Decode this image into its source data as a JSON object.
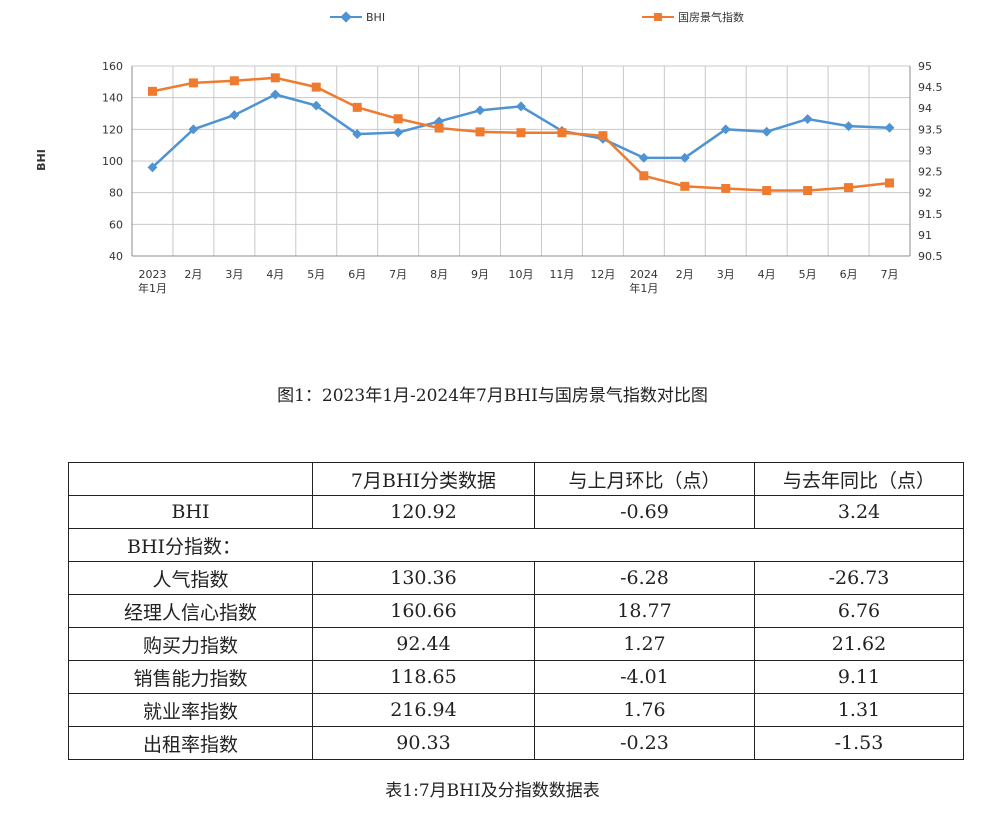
{
  "chart_data": {
    "type": "line",
    "categories": [
      "2023\n年1月",
      "2月",
      "3月",
      "4月",
      "5月",
      "6月",
      "7月",
      "8月",
      "9月",
      "10月",
      "11月",
      "12月",
      "2024\n年1月",
      "2月",
      "3月",
      "4月",
      "5月",
      "6月",
      "7月"
    ],
    "ylabel": "BHI",
    "ylim": [
      40,
      160
    ],
    "yticks": [
      40,
      60,
      80,
      100,
      120,
      140,
      160
    ],
    "y2lim": [
      90.5,
      95
    ],
    "y2ticks": [
      "90.5",
      "91",
      "91.5",
      "92",
      "92.5",
      "93",
      "93.5",
      "94",
      "94.5",
      "95"
    ],
    "grid": true,
    "legend_position": "top",
    "series": [
      {
        "name": "BHI",
        "axis": "left",
        "color": "#4f93d2",
        "marker": "diamond",
        "values": [
          96,
          120,
          129,
          142,
          135,
          117,
          118,
          125,
          132,
          134.5,
          119,
          114,
          102,
          102,
          120,
          118.5,
          126.5,
          122,
          121
        ]
      },
      {
        "name": "国房景气指数",
        "axis": "right",
        "color": "#ee7b30",
        "marker": "square",
        "values": [
          94.4,
          94.6,
          94.65,
          94.72,
          94.5,
          94.02,
          93.75,
          93.53,
          93.44,
          93.42,
          93.42,
          93.35,
          92.4,
          92.15,
          92.1,
          92.05,
          92.05,
          92.12,
          92.23
        ]
      }
    ]
  },
  "figure_caption": "图1：2023年1月-2024年7月BHI与国房景气指数对比图",
  "table": {
    "header": [
      "",
      "7月BHI分类数据",
      "与上月环比（点）",
      "与去年同比（点）"
    ],
    "bhi_row": [
      "BHI",
      "120.92",
      "-0.69",
      "3.24"
    ],
    "sub_header": "BHI分指数：",
    "rows": [
      [
        "人气指数",
        "130.36",
        "-6.28",
        "-26.73"
      ],
      [
        "经理人信心指数",
        "160.66",
        "18.77",
        "6.76"
      ],
      [
        "购买力指数",
        "92.44",
        "1.27",
        "21.62"
      ],
      [
        "销售能力指数",
        "118.65",
        "-4.01",
        "9.11"
      ],
      [
        "就业率指数",
        "216.94",
        "1.76",
        "1.31"
      ],
      [
        "出租率指数",
        "90.33",
        "-0.23",
        "-1.53"
      ]
    ]
  },
  "table_caption": "表1:7月BHI及分指数数据表"
}
